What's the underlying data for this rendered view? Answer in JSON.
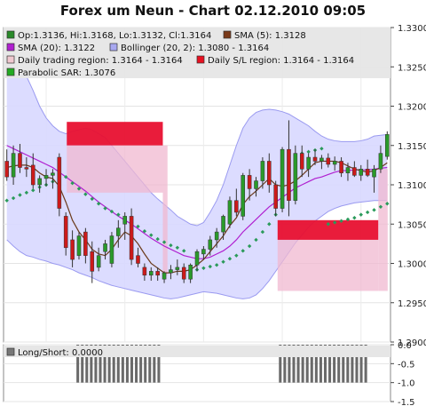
{
  "title": "Forex um Neun - Chart 02.12.2010 09:05",
  "legend_main": [
    {
      "key": "ohlc",
      "label": "Op:1.3136, Hi:1.3168, Lo:1.3132, Cl:1.3164",
      "color": "#2a8a2a"
    },
    {
      "key": "sma5",
      "label": "SMA (5): 1.3128",
      "color": "#7a3a1a"
    },
    {
      "key": "sma20",
      "label": "SMA (20): 1.3122",
      "color": "#b020d0"
    },
    {
      "key": "boll",
      "label": "Bollinger (20, 2): 1.3080 - 1.3164",
      "color": "#a8a8f0"
    },
    {
      "key": "dtr",
      "label": "Daily trading region: 1.3164 - 1.3164",
      "color": "#f0c8d0"
    },
    {
      "key": "dsl",
      "label": "Daily S/L region: 1.3164 - 1.3164",
      "color": "#e81020"
    },
    {
      "key": "psar",
      "label": "Parabolic SAR: 1.3076",
      "color": "#22aa22"
    }
  ],
  "legend_lower": [
    {
      "key": "ls",
      "label": "Long/Short: 0.0000",
      "color": "#777777"
    }
  ],
  "colors": {
    "up": "#2a9a2a",
    "down": "#cc1a1a",
    "sma5": "#6b3a1a",
    "sma20": "#b020d0",
    "band": "#d8d8ff",
    "band_line": "#9a9af0",
    "psar": "#2a9a5a",
    "region_red": "#e81030",
    "region_pink": "#f0b8d0",
    "bars": "#6a6a6a"
  },
  "chart_data": [
    {
      "type": "candlestick",
      "ylim": [
        1.29,
        1.33
      ],
      "y_ticks": [
        "1.3300",
        "1.3250",
        "1.3200",
        "1.3150",
        "1.3100",
        "1.3050",
        "1.3000",
        "1.2950",
        "1.2900"
      ],
      "candles": [
        [
          1.313,
          1.3145,
          1.3105,
          1.311
        ],
        [
          1.311,
          1.315,
          1.31,
          1.314
        ],
        [
          1.314,
          1.3152,
          1.3115,
          1.3122
        ],
        [
          1.3122,
          1.3135,
          1.311,
          1.312
        ],
        [
          1.3125,
          1.314,
          1.3095,
          1.31
        ],
        [
          1.31,
          1.3112,
          1.309,
          1.3108
        ],
        [
          1.3108,
          1.312,
          1.3098,
          1.3112
        ],
        [
          1.3112,
          1.312,
          1.3095,
          1.3115
        ],
        [
          1.3135,
          1.314,
          1.306,
          1.307
        ],
        [
          1.306,
          1.3065,
          1.301,
          1.302
        ],
        [
          1.303,
          1.3042,
          1.2995,
          1.3005
        ],
        [
          1.301,
          1.304,
          1.3005,
          1.3035
        ],
        [
          1.304,
          1.3045,
          1.3,
          1.301
        ],
        [
          1.3015,
          1.3028,
          1.2975,
          1.299
        ],
        [
          1.2995,
          1.302,
          1.299,
          1.301
        ],
        [
          1.3015,
          1.303,
          1.3005,
          1.3025
        ],
        [
          1.3,
          1.304,
          1.2995,
          1.3035
        ],
        [
          1.3035,
          1.3055,
          1.302,
          1.3045
        ],
        [
          1.305,
          1.3065,
          1.303,
          1.306
        ],
        [
          1.306,
          1.307,
          1.2998,
          1.3005
        ],
        [
          1.301,
          1.302,
          1.2995,
          1.3
        ],
        [
          1.2995,
          1.3,
          1.2978,
          1.2985
        ],
        [
          1.2985,
          1.2995,
          1.2978,
          1.299
        ],
        [
          1.299,
          1.2995,
          1.2978,
          1.2985
        ],
        [
          1.298,
          1.299,
          1.2975,
          1.2988
        ],
        [
          1.2988,
          1.2998,
          1.298,
          1.2992
        ],
        [
          1.2992,
          1.3005,
          1.2985,
          1.2995
        ],
        [
          1.2995,
          1.3,
          1.2975,
          1.298
        ],
        [
          1.298,
          1.3,
          1.2975,
          1.2998
        ],
        [
          1.2998,
          1.3018,
          1.299,
          1.3015
        ],
        [
          1.3012,
          1.3022,
          1.3005,
          1.3018
        ],
        [
          1.3018,
          1.3035,
          1.301,
          1.303
        ],
        [
          1.303,
          1.3045,
          1.302,
          1.304
        ],
        [
          1.304,
          1.3062,
          1.303,
          1.306
        ],
        [
          1.305,
          1.3085,
          1.3045,
          1.308
        ],
        [
          1.308,
          1.3095,
          1.306,
          1.3065
        ],
        [
          1.306,
          1.3115,
          1.3055,
          1.3112
        ],
        [
          1.3112,
          1.312,
          1.308,
          1.3095
        ],
        [
          1.3095,
          1.311,
          1.3085,
          1.3105
        ],
        [
          1.3105,
          1.3135,
          1.3095,
          1.313
        ],
        [
          1.313,
          1.314,
          1.309,
          1.31
        ],
        [
          1.31,
          1.3105,
          1.306,
          1.307
        ],
        [
          1.307,
          1.3148,
          1.3065,
          1.3145
        ],
        [
          1.3145,
          1.3182,
          1.306,
          1.308
        ],
        [
          1.308,
          1.315,
          1.3075,
          1.314
        ],
        [
          1.314,
          1.315,
          1.311,
          1.312
        ],
        [
          1.312,
          1.314,
          1.311,
          1.3135
        ],
        [
          1.3135,
          1.3145,
          1.3125,
          1.313
        ],
        [
          1.313,
          1.3138,
          1.312,
          1.3134
        ],
        [
          1.3134,
          1.314,
          1.3122,
          1.3126
        ],
        [
          1.3126,
          1.3136,
          1.3118,
          1.313
        ],
        [
          1.313,
          1.3135,
          1.311,
          1.3115
        ],
        [
          1.3115,
          1.3128,
          1.3105,
          1.3122
        ],
        [
          1.3122,
          1.313,
          1.311,
          1.3112
        ],
        [
          1.3112,
          1.3125,
          1.3105,
          1.312
        ],
        [
          1.312,
          1.3132,
          1.311,
          1.3112
        ],
        [
          1.311,
          1.3125,
          1.309,
          1.312
        ],
        [
          1.312,
          1.315,
          1.3115,
          1.314
        ],
        [
          1.3136,
          1.3168,
          1.3132,
          1.3164
        ]
      ],
      "sma5": [
        1.3122,
        1.3124,
        1.3125,
        1.3125,
        1.3122,
        1.3115,
        1.311,
        1.3108,
        1.3098,
        1.3078,
        1.3055,
        1.304,
        1.303,
        1.3018,
        1.3012,
        1.301,
        1.3018,
        1.303,
        1.304,
        1.3035,
        1.3025,
        1.3012,
        1.3,
        1.2994,
        1.2988,
        1.2988,
        1.299,
        1.299,
        1.2992,
        1.2998,
        1.3005,
        1.3015,
        1.3025,
        1.3035,
        1.3048,
        1.3058,
        1.3075,
        1.3085,
        1.3092,
        1.31,
        1.3108,
        1.31,
        1.3098,
        1.31,
        1.3105,
        1.3112,
        1.312,
        1.3128,
        1.313,
        1.313,
        1.313,
        1.3128,
        1.3124,
        1.312,
        1.3118,
        1.3116,
        1.3118,
        1.3122,
        1.3128
      ],
      "sma20": [
        1.315,
        1.3146,
        1.3142,
        1.3138,
        1.3134,
        1.313,
        1.3126,
        1.3122,
        1.3116,
        1.311,
        1.3104,
        1.3098,
        1.3092,
        1.3085,
        1.3078,
        1.3072,
        1.3066,
        1.306,
        1.3055,
        1.305,
        1.3044,
        1.3038,
        1.3032,
        1.3027,
        1.3022,
        1.3018,
        1.3014,
        1.301,
        1.3008,
        1.3006,
        1.3006,
        1.3008,
        1.3012,
        1.3016,
        1.3022,
        1.303,
        1.304,
        1.3048,
        1.3056,
        1.3064,
        1.3072,
        1.3078,
        1.3084,
        1.309,
        1.3096,
        1.31,
        1.3104,
        1.3108,
        1.311,
        1.3113,
        1.3116,
        1.3118,
        1.3118,
        1.3119,
        1.3119,
        1.3119,
        1.312,
        1.3121,
        1.3122
      ],
      "boll_upper": [
        1.324,
        1.324,
        1.324,
        1.3238,
        1.322,
        1.32,
        1.3185,
        1.3175,
        1.3168,
        1.3165,
        1.3168,
        1.317,
        1.3172,
        1.317,
        1.3165,
        1.316,
        1.315,
        1.314,
        1.313,
        1.312,
        1.311,
        1.31,
        1.309,
        1.3082,
        1.3075,
        1.3068,
        1.306,
        1.3055,
        1.305,
        1.3048,
        1.3052,
        1.3065,
        1.308,
        1.31,
        1.3125,
        1.315,
        1.3172,
        1.3185,
        1.3192,
        1.3195,
        1.3196,
        1.3195,
        1.3193,
        1.319,
        1.3185,
        1.318,
        1.3175,
        1.3168,
        1.3162,
        1.3158,
        1.3156,
        1.3155,
        1.3155,
        1.3155,
        1.3156,
        1.3158,
        1.3162,
        1.3163,
        1.3164
      ],
      "boll_lower": [
        1.303,
        1.3022,
        1.3015,
        1.301,
        1.3008,
        1.3005,
        1.3003,
        1.3,
        1.2998,
        1.2995,
        1.2992,
        1.2988,
        1.2985,
        1.2982,
        1.2978,
        1.2975,
        1.2972,
        1.297,
        1.2968,
        1.2966,
        1.2964,
        1.2962,
        1.296,
        1.2958,
        1.2956,
        1.2955,
        1.2956,
        1.2958,
        1.296,
        1.2962,
        1.2964,
        1.2963,
        1.2962,
        1.296,
        1.2958,
        1.2956,
        1.2955,
        1.2956,
        1.296,
        1.2968,
        1.2978,
        1.299,
        1.3002,
        1.3014,
        1.3026,
        1.3036,
        1.3046,
        1.3054,
        1.306,
        1.3066,
        1.307,
        1.3073,
        1.3075,
        1.3077,
        1.3078,
        1.3079,
        1.308,
        1.308,
        1.308
      ],
      "psar": [
        1.308,
        1.3083,
        1.3087,
        1.309,
        1.3093,
        1.3097,
        1.31,
        1.3104,
        1.3107,
        1.311,
        1.3102,
        1.3095,
        1.3088,
        1.3082,
        1.3076,
        1.307,
        1.3066,
        1.3062,
        1.3057,
        1.3052,
        1.3047,
        1.3041,
        1.3036,
        1.3031,
        1.3027,
        1.3023,
        1.302,
        1.3016,
        1.299,
        1.2992,
        1.2994,
        1.2996,
        1.2998,
        1.3002,
        1.3006,
        1.301,
        1.3016,
        1.3022,
        1.303,
        1.304,
        1.305,
        1.3062,
        1.3075,
        1.3088,
        1.31,
        1.314,
        1.3142,
        1.3144,
        1.3146,
        1.305,
        1.3052,
        1.3054,
        1.3056,
        1.3058,
        1.3062,
        1.3065,
        1.3068,
        1.3072,
        1.3076
      ],
      "regions": [
        {
          "kind": "sl",
          "x0": 13.5,
          "x1": 34,
          "y0": 1.318,
          "y1": 1.315
        },
        {
          "kind": "trade",
          "x0": 13.5,
          "x1": 34,
          "y0": 1.315,
          "y1": 1.309
        },
        {
          "kind": "trade",
          "x0": 34,
          "x1": 35,
          "y0": 1.315,
          "y1": 1.2985
        },
        {
          "kind": "sl",
          "x0": 58.5,
          "x1": 80,
          "y0": 1.3055,
          "y1": 1.303
        },
        {
          "kind": "trade",
          "x0": 58.5,
          "x1": 80,
          "y0": 1.303,
          "y1": 1.2965
        },
        {
          "kind": "trade",
          "x0": 80,
          "x1": 82,
          "y0": 1.312,
          "y1": 1.2965
        }
      ]
    },
    {
      "type": "bar",
      "ylim": [
        -1.5,
        0.0
      ],
      "y_ticks": [
        "0.0",
        "-0.5",
        "-1.0",
        "-1.5"
      ],
      "values": [
        0,
        0,
        0,
        0,
        0,
        0,
        0,
        0,
        0,
        0,
        0,
        0,
        0,
        0,
        0,
        0,
        -1.0,
        -1.0,
        -1.0,
        -1.0,
        -1.0,
        -1.0,
        -1.0,
        -1.0,
        -1.0,
        -1.0,
        -1.0,
        -1.0,
        -1.0,
        -1.0,
        -1.0,
        -1.0,
        -1.0,
        -1.0,
        -1.0,
        0,
        0,
        0,
        0,
        0,
        0,
        0,
        0,
        0,
        0,
        0,
        0,
        0,
        0,
        0,
        0,
        0,
        0,
        0,
        0,
        0,
        0,
        0,
        0,
        0,
        0,
        -1.0,
        -1.0,
        -1.0,
        -1.0,
        -1.0,
        -1.0,
        -1.0,
        -1.0,
        -1.0,
        -1.0,
        -1.0,
        -1.0,
        -1.0,
        -1.0,
        -1.0,
        -1.0,
        -1.0,
        -1.0,
        -1.0,
        -1.0,
        0,
        0,
        0,
        0,
        0
      ]
    }
  ]
}
